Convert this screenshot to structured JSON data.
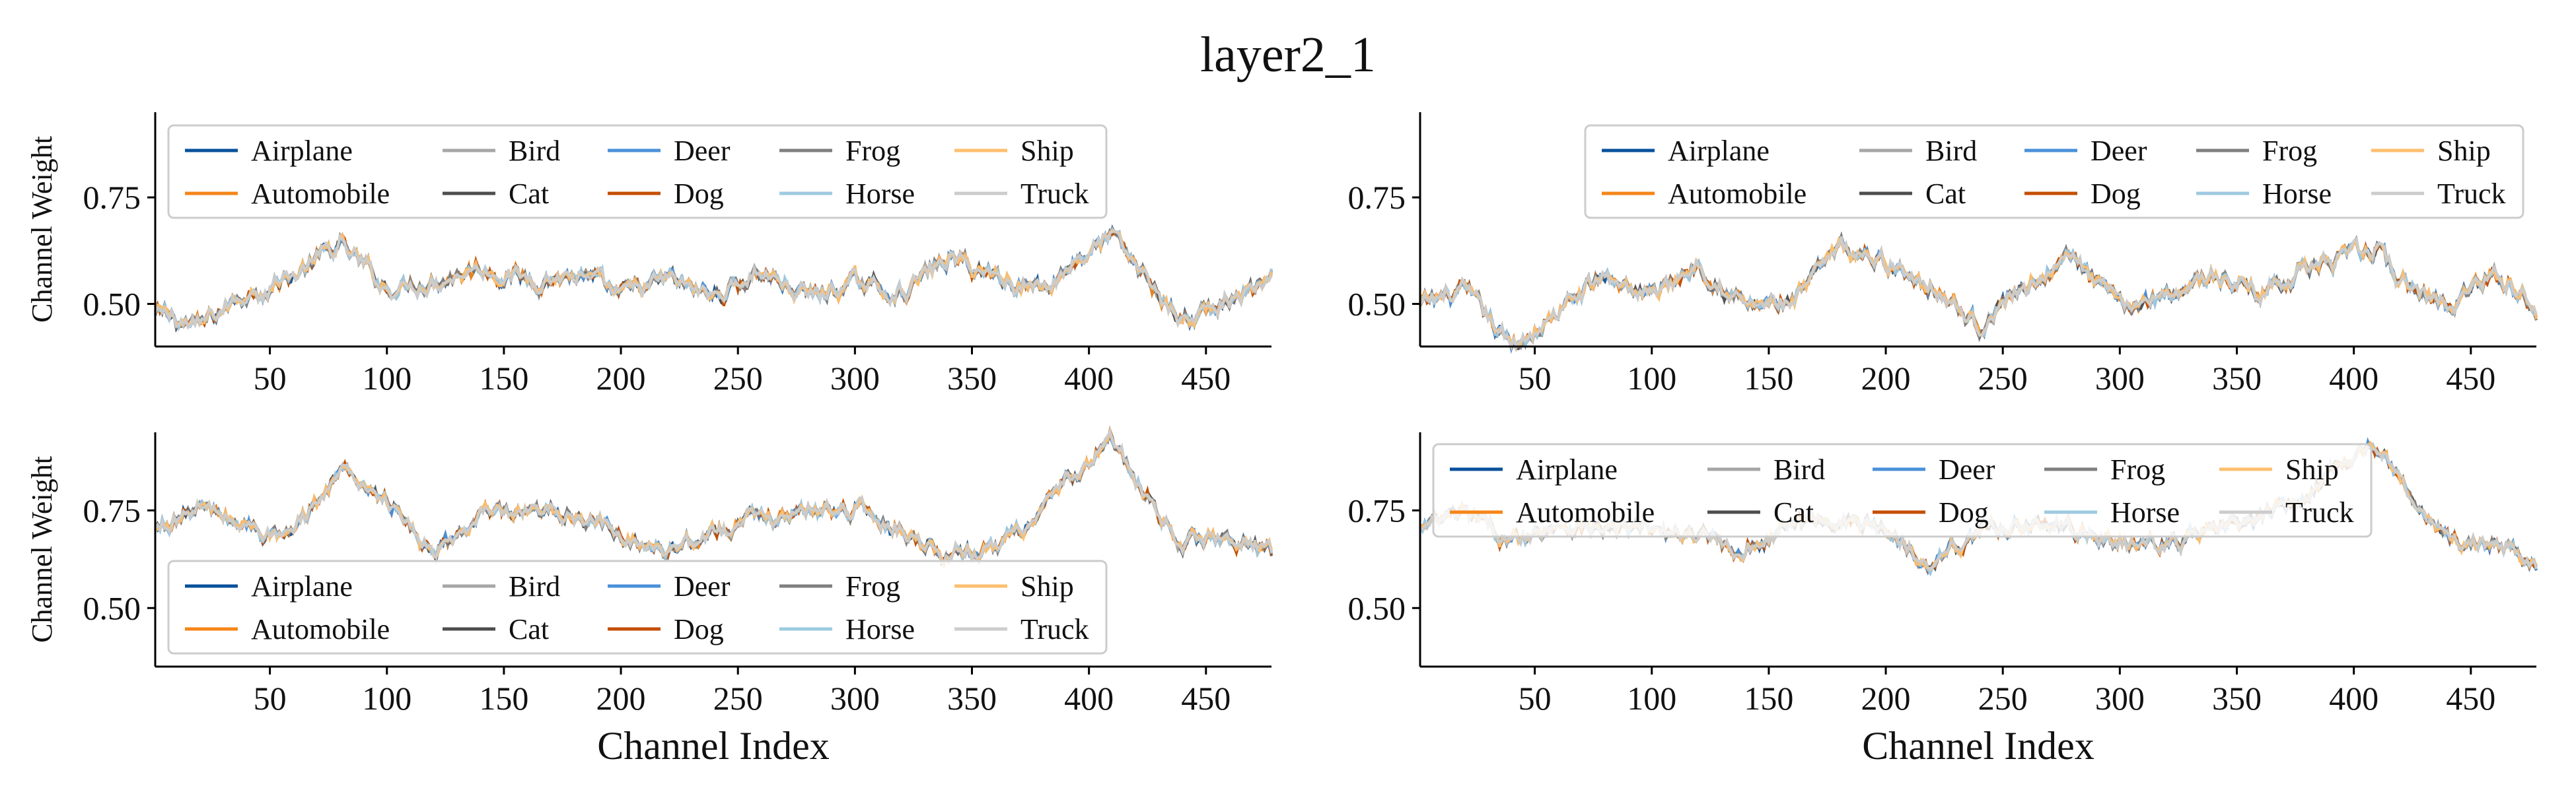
{
  "figure_title": "layer2_1",
  "legend_entries": [
    {
      "label": "Airplane",
      "color": "#08519c"
    },
    {
      "label": "Automobile",
      "color": "#f58518"
    },
    {
      "label": "Bird",
      "color": "#a6a6a6"
    },
    {
      "label": "Cat",
      "color": "#4d4d4d"
    },
    {
      "label": "Deer",
      "color": "#4a90d9"
    },
    {
      "label": "Dog",
      "color": "#c44e00"
    },
    {
      "label": "Frog",
      "color": "#7f7f7f"
    },
    {
      "label": "Horse",
      "color": "#9ecae1"
    },
    {
      "label": "Ship",
      "color": "#fdbf6f"
    },
    {
      "label": "Truck",
      "color": "#cccccc"
    }
  ],
  "chart_data": [
    {
      "type": "line",
      "position": "top-left",
      "xlabel": "",
      "ylabel": "Channel Weight",
      "xlim": [
        1,
        478
      ],
      "ylim": [
        0.4,
        0.95
      ],
      "xticks": [
        50,
        100,
        150,
        200,
        250,
        300,
        350,
        400,
        450
      ],
      "yticks": [
        0.5,
        0.75
      ],
      "ytick_labels": [
        "0.50",
        "0.75"
      ],
      "legend_placement": "upper-left",
      "series_names": [
        "Airplane",
        "Automobile",
        "Bird",
        "Cat",
        "Deer",
        "Dog",
        "Frog",
        "Horse",
        "Ship",
        "Truck"
      ],
      "x": [
        1,
        20,
        40,
        60,
        80,
        100,
        120,
        140,
        160,
        180,
        200,
        220,
        240,
        260,
        280,
        300,
        320,
        340,
        360,
        380,
        400,
        410,
        420,
        440,
        460,
        478
      ],
      "y_mean": [
        0.48,
        0.45,
        0.53,
        0.57,
        0.64,
        0.54,
        0.56,
        0.59,
        0.56,
        0.57,
        0.52,
        0.56,
        0.52,
        0.58,
        0.52,
        0.55,
        0.53,
        0.61,
        0.57,
        0.54,
        0.63,
        0.66,
        0.59,
        0.46,
        0.51,
        0.55
      ]
    },
    {
      "type": "line",
      "position": "top-right",
      "xlabel": "",
      "ylabel": "",
      "xlim": [
        1,
        478
      ],
      "ylim": [
        0.4,
        0.95
      ],
      "xticks": [
        50,
        100,
        150,
        200,
        250,
        300,
        350,
        400,
        450
      ],
      "yticks": [
        0.5,
        0.75
      ],
      "ytick_labels": [
        "0.50",
        "0.75"
      ],
      "legend_placement": "upper-right",
      "series_names": [
        "Airplane",
        "Automobile",
        "Bird",
        "Cat",
        "Deer",
        "Dog",
        "Frog",
        "Horse",
        "Ship",
        "Truck"
      ],
      "x": [
        1,
        20,
        40,
        60,
        80,
        100,
        120,
        140,
        160,
        180,
        200,
        220,
        240,
        260,
        280,
        300,
        320,
        340,
        360,
        380,
        400,
        410,
        420,
        440,
        460,
        478
      ],
      "y_mean": [
        0.5,
        0.53,
        0.4,
        0.48,
        0.57,
        0.52,
        0.6,
        0.5,
        0.5,
        0.63,
        0.6,
        0.55,
        0.45,
        0.55,
        0.61,
        0.49,
        0.53,
        0.57,
        0.53,
        0.59,
        0.61,
        0.63,
        0.55,
        0.5,
        0.58,
        0.5
      ]
    },
    {
      "type": "line",
      "position": "bottom-left",
      "xlabel": "Channel Index",
      "ylabel": "Channel Weight",
      "xlim": [
        1,
        478
      ],
      "ylim": [
        0.35,
        0.95
      ],
      "xticks": [
        50,
        100,
        150,
        200,
        250,
        300,
        350,
        400,
        450
      ],
      "yticks": [
        0.5,
        0.75
      ],
      "ytick_labels": [
        "0.50",
        "0.75"
      ],
      "legend_placement": "lower-left",
      "series_names": [
        "Airplane",
        "Automobile",
        "Bird",
        "Cat",
        "Deer",
        "Dog",
        "Frog",
        "Horse",
        "Ship",
        "Truck"
      ],
      "x": [
        1,
        20,
        40,
        60,
        80,
        100,
        120,
        140,
        160,
        180,
        200,
        220,
        240,
        260,
        280,
        300,
        320,
        340,
        360,
        380,
        400,
        410,
        420,
        440,
        460,
        478
      ],
      "y_mean": [
        0.7,
        0.76,
        0.71,
        0.68,
        0.86,
        0.78,
        0.63,
        0.74,
        0.73,
        0.75,
        0.68,
        0.66,
        0.7,
        0.73,
        0.75,
        0.76,
        0.7,
        0.64,
        0.66,
        0.75,
        0.88,
        0.93,
        0.82,
        0.67,
        0.68,
        0.64
      ]
    },
    {
      "type": "line",
      "position": "bottom-right",
      "xlabel": "Channel Index",
      "ylabel": "",
      "xlim": [
        1,
        478
      ],
      "ylim": [
        0.35,
        0.95
      ],
      "xticks": [
        50,
        100,
        150,
        200,
        250,
        300,
        350,
        400,
        450
      ],
      "yticks": [
        0.5,
        0.75
      ],
      "ytick_labels": [
        "0.50",
        "0.75"
      ],
      "legend_placement": "upper-left",
      "series_names": [
        "Airplane",
        "Automobile",
        "Bird",
        "Cat",
        "Deer",
        "Dog",
        "Frog",
        "Horse",
        "Ship",
        "Truck"
      ],
      "x": [
        1,
        20,
        40,
        60,
        80,
        100,
        120,
        140,
        160,
        180,
        200,
        220,
        240,
        260,
        280,
        300,
        320,
        340,
        360,
        380,
        400,
        410,
        420,
        440,
        460,
        478
      ],
      "y_mean": [
        0.7,
        0.74,
        0.67,
        0.72,
        0.7,
        0.7,
        0.68,
        0.65,
        0.72,
        0.73,
        0.7,
        0.62,
        0.7,
        0.72,
        0.7,
        0.67,
        0.66,
        0.7,
        0.72,
        0.8,
        0.9,
        0.92,
        0.82,
        0.67,
        0.66,
        0.63
      ]
    }
  ]
}
